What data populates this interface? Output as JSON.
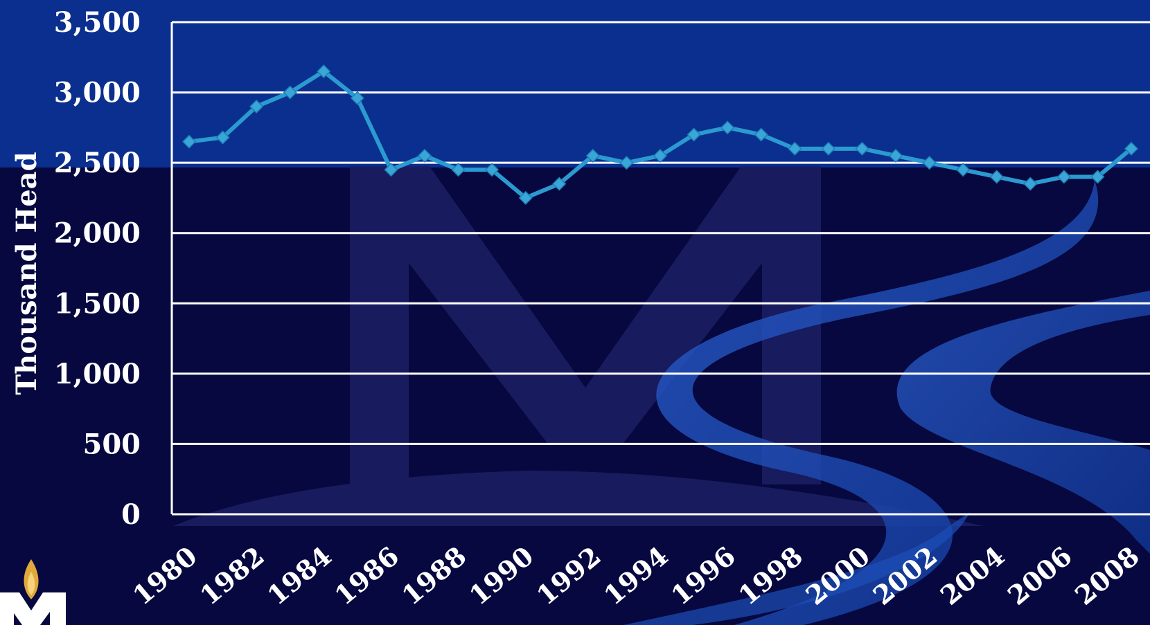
{
  "chart_data": {
    "type": "line",
    "ylabel": "Thousand Head",
    "ylim": [
      0,
      3500
    ],
    "yticks": [
      0,
      500,
      1000,
      1500,
      2000,
      2500,
      3000,
      3500
    ],
    "ytick_labels": [
      "0",
      "500",
      "1,000",
      "1,500",
      "2,000",
      "2,500",
      "3,000",
      "3,500"
    ],
    "xlim": [
      1980,
      2008
    ],
    "xtick_labels": [
      "1980",
      "1982",
      "1984",
      "1986",
      "1988",
      "1990",
      "1992",
      "1994",
      "1996",
      "1998",
      "2000",
      "2002",
      "2004",
      "2006",
      "2008"
    ],
    "grid": true,
    "legend": "none",
    "series": [
      {
        "x": [
          1980,
          1981,
          1982,
          1983,
          1984,
          1985,
          1986,
          1987,
          1988,
          1989,
          1990,
          1991,
          1992,
          1993,
          1994,
          1995,
          1996,
          1997,
          1998,
          1999,
          2000,
          2001,
          2002,
          2003,
          2004,
          2005,
          2006,
          2007,
          2008
        ],
        "values": [
          2650,
          2680,
          2900,
          3000,
          3150,
          2960,
          2450,
          2550,
          2450,
          2450,
          2250,
          2350,
          2550,
          2500,
          2550,
          2700,
          2750,
          2700,
          2600,
          2600,
          2600,
          2550,
          2500,
          2450,
          2400,
          2350,
          2400,
          2400,
          2600
        ]
      }
    ]
  },
  "colors": {
    "background": "#07083f",
    "top_band": "#0a2f8e",
    "line": "#2b9ad0",
    "marker": "#3aa6d8",
    "grid": "#ffffff",
    "watermark": "#1b1f63",
    "ribbon": "#1c4fb8"
  },
  "logo": {
    "icon": "flame-logo-icon"
  }
}
